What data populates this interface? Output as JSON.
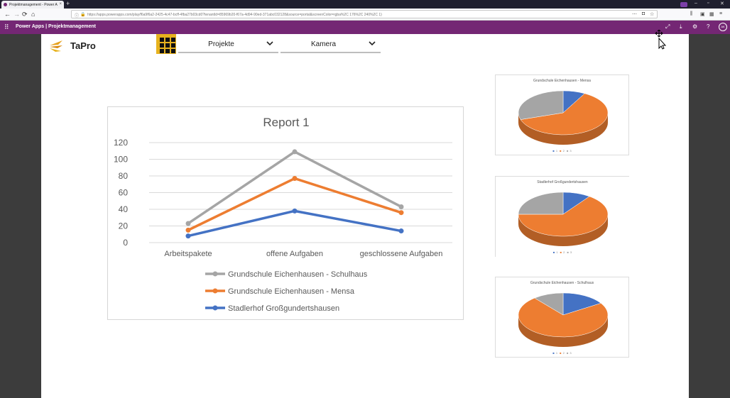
{
  "browser": {
    "tab_title": "Projektmanagement - Power A",
    "tab_close": "×",
    "new_tab": "+",
    "url": "https://apps.powerapps.com/play/f6a9f6a2-2425-4c47-bcff-4fba27b03cd0?tenantId=85969b20-f67a-4d94-90ed-371abc032128&source=portal&screenColor=rgba%2C 176%2C 240%2C 1)"
  },
  "appbar": {
    "title": "Power Apps  |  Projektmanagement",
    "avatar": "AK"
  },
  "header": {
    "brand": "TaPro",
    "dropdown_project": "Projekte",
    "dropdown_camera": "Kamera"
  },
  "colors": {
    "gray": "#a5a5a5",
    "orange": "#ed7d31",
    "blue": "#4472c4",
    "accent": "#742774",
    "grid_button": "#e7b21e"
  },
  "chart_data": {
    "type": "line",
    "title": "Report 1",
    "categories": [
      "Arbeitspakete",
      "offene Aufgaben",
      "geschlossene Aufgaben"
    ],
    "ylim": [
      0,
      120
    ],
    "yticks": [
      0,
      20,
      40,
      60,
      80,
      100,
      120
    ],
    "grid": true,
    "legend_position": "bottom",
    "series": [
      {
        "name": "Grundschule Eichenhausen - Schulhaus",
        "color": "#a5a5a5",
        "values": [
          23,
          109,
          43
        ]
      },
      {
        "name": "Grundschule Eichenhausen - Mensa",
        "color": "#ed7d31",
        "values": [
          15,
          77,
          36
        ]
      },
      {
        "name": "Stadlerhof Großgundertshausen",
        "color": "#4472c4",
        "values": [
          8,
          38,
          14
        ]
      }
    ]
  },
  "pies": [
    {
      "title": "Grundschule Eichenhausen - Mensa",
      "legend": [
        "1",
        "2",
        "3"
      ],
      "slices": [
        {
          "value": 0.08,
          "color": "#4472c4"
        },
        {
          "value": 0.62,
          "color": "#ed7d31"
        },
        {
          "value": 0.3,
          "color": "#a5a5a5"
        }
      ]
    },
    {
      "title": "Stadlerhof Großgundertshausen",
      "legend": [
        "1",
        "2",
        "3"
      ],
      "slices": [
        {
          "value": 0.1,
          "color": "#4472c4"
        },
        {
          "value": 0.65,
          "color": "#ed7d31"
        },
        {
          "value": 0.25,
          "color": "#a5a5a5"
        }
      ]
    },
    {
      "title": "Grundschule Eichenhausen - Schulhaus",
      "legend": [
        "1",
        "2",
        "3"
      ],
      "slices": [
        {
          "value": 0.16,
          "color": "#4472c4"
        },
        {
          "value": 0.73,
          "color": "#ed7d31"
        },
        {
          "value": 0.11,
          "color": "#a5a5a5"
        }
      ]
    }
  ]
}
